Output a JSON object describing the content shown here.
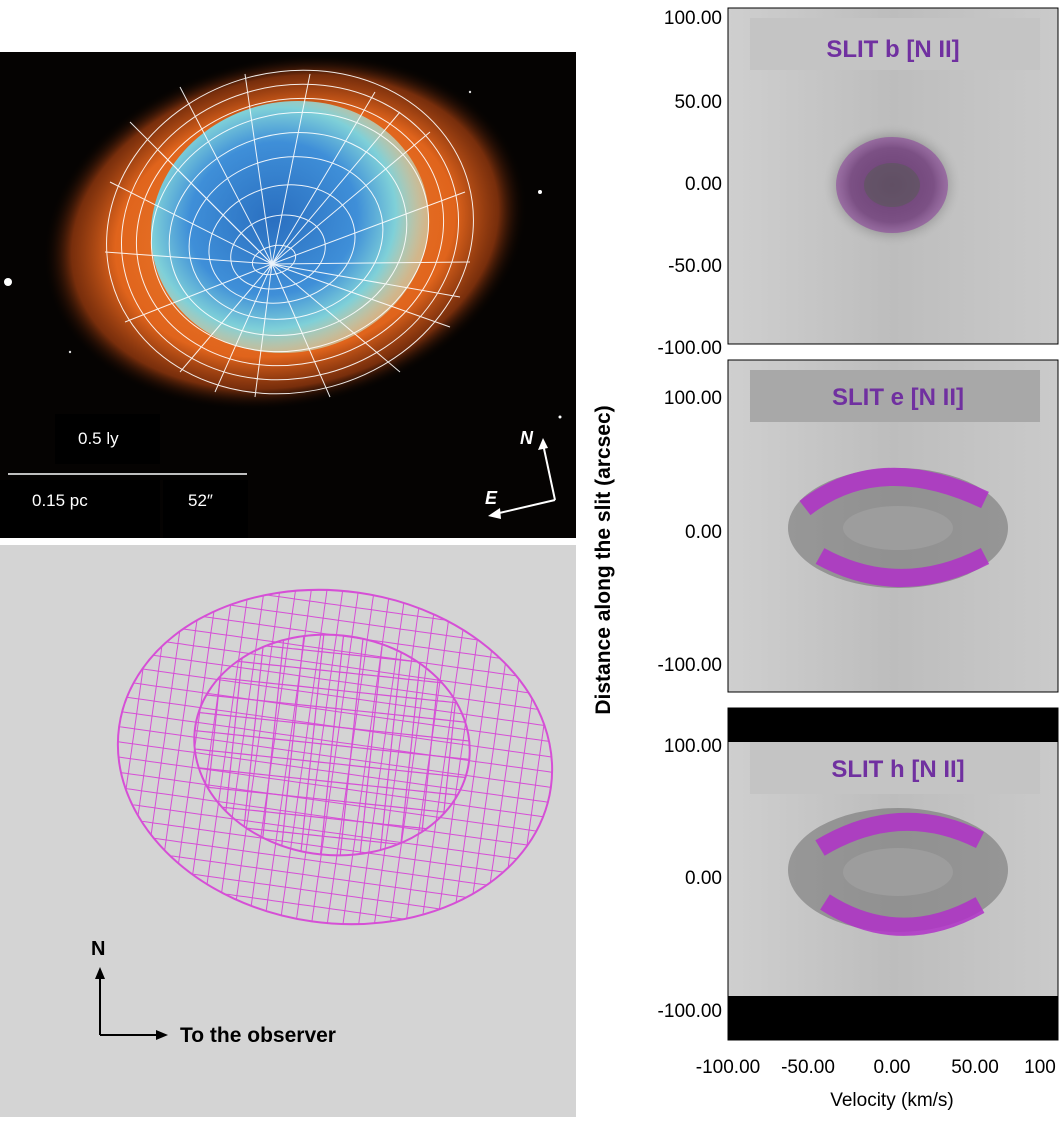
{
  "photo_panel": {
    "scale_top_label": "0.5 ly",
    "scale_bottom_left_label": "0.15 pc",
    "scale_bottom_right_label": "52″",
    "compass_north": "N",
    "compass_east": "E"
  },
  "model_panel": {
    "axis_north": "N",
    "axis_observer": "To the observer",
    "mesh_color": "#d64fd6"
  },
  "spectra_panel": {
    "y_axis_label": "Distance along the slit (arcsec)",
    "x_axis_label": "Velocity (km/s)",
    "x_tick_labels": [
      "-100.00",
      "-50.00",
      "0.00",
      "50.00",
      "100"
    ],
    "slits": [
      {
        "label": "SLIT b [N II]",
        "y_tick_labels": [
          "100.00",
          "50.00",
          "0.00",
          "-50.00",
          "-100.00"
        ]
      },
      {
        "label": "SLIT e [N II]",
        "y_tick_labels": [
          "100.00",
          "0.00",
          "-100.00"
        ]
      },
      {
        "label": "SLIT h [N II]",
        "y_tick_labels": [
          "100.00",
          "0.00",
          "-100.00"
        ]
      }
    ],
    "label_color": "#7030a0",
    "emission_color": "#b030c8"
  }
}
